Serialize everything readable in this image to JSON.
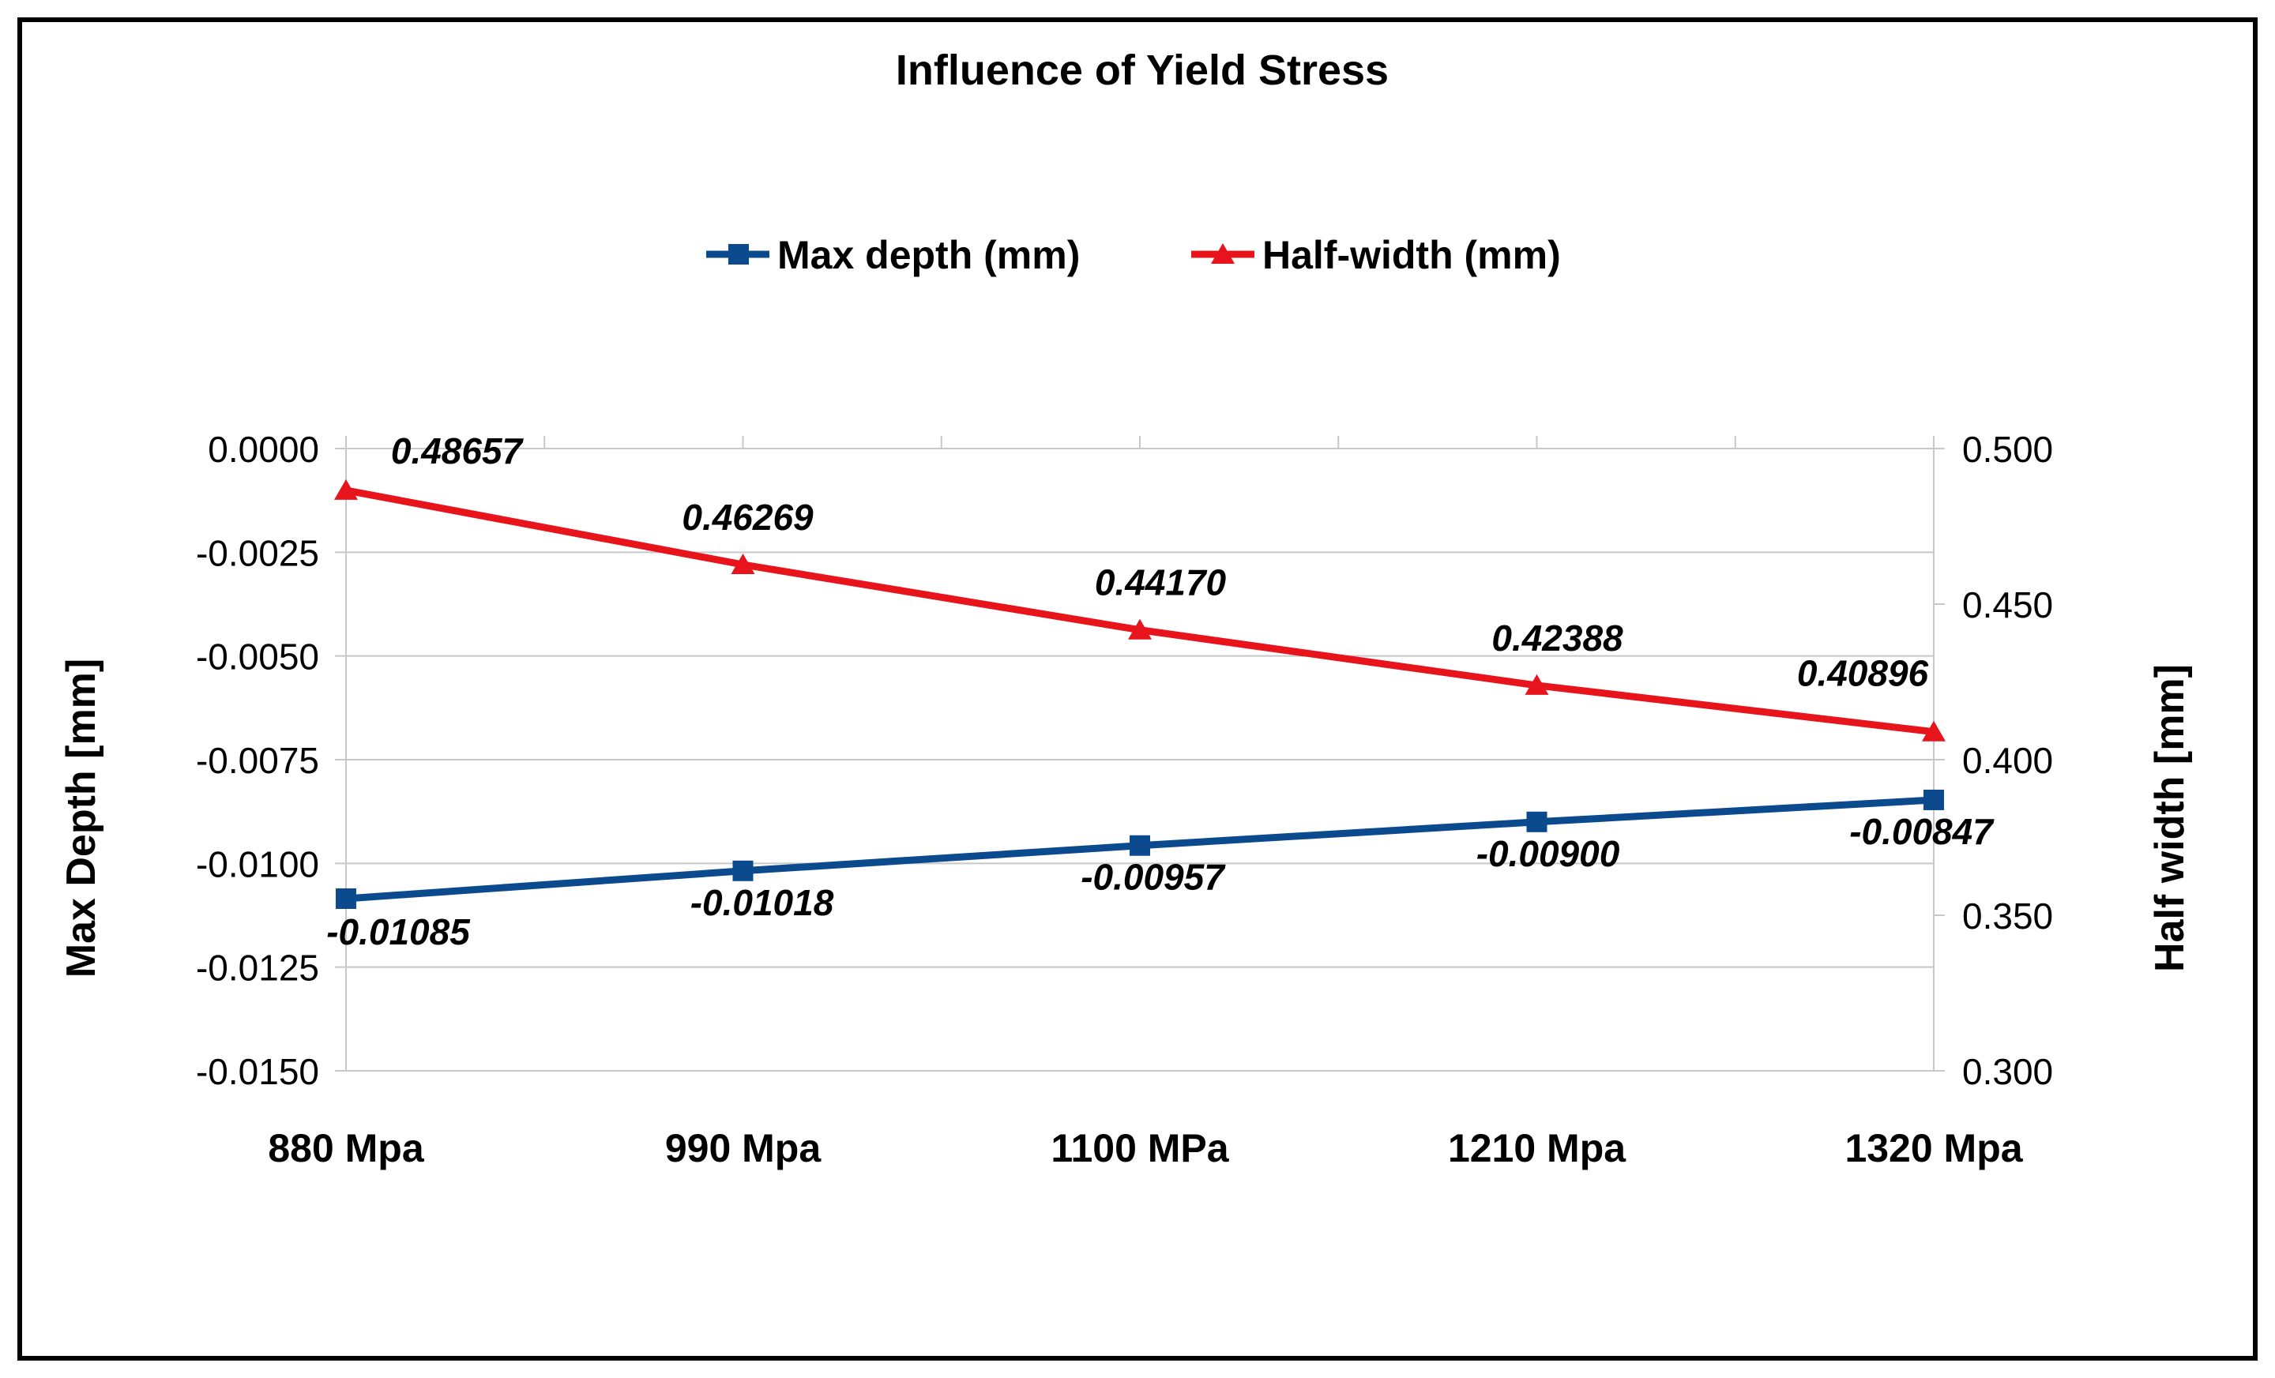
{
  "chart_data": {
    "type": "line",
    "title": "Influence of Yield Stress",
    "categories": [
      "880 Mpa",
      "990 Mpa",
      "1100 MPa",
      "1210 Mpa",
      "1320 Mpa"
    ],
    "series": [
      {
        "name": "Max depth (mm)",
        "axis": "left",
        "color": "#0B4A8C",
        "marker": "square",
        "values": [
          -0.01085,
          -0.01018,
          -0.00957,
          -0.009,
          -0.00847
        ],
        "labels": [
          "-0.01085",
          "-0.01018",
          "-0.00957",
          "-0.00900",
          "-0.00847"
        ]
      },
      {
        "name": "Half-width (mm)",
        "axis": "right",
        "color": "#E8141B",
        "marker": "triangle",
        "values": [
          0.48657,
          0.46269,
          0.4417,
          0.42388,
          0.40896
        ],
        "labels": [
          "0.48657",
          "0.46269",
          "0.44170",
          "0.42388",
          "0.40896"
        ]
      }
    ],
    "y_left": {
      "label": "Max Depth [mm]",
      "min": -0.015,
      "max": 0.0,
      "ticks": [
        0.0,
        -0.0025,
        -0.005,
        -0.0075,
        -0.01,
        -0.0125,
        -0.015
      ],
      "tick_labels": [
        "0.0000",
        "-0.0025",
        "-0.0050",
        "-0.0075",
        "-0.0100",
        "-0.0125",
        "-0.0150"
      ]
    },
    "y_right": {
      "label": "Half width [mm]",
      "min": 0.3,
      "max": 0.5,
      "ticks": [
        0.5,
        0.45,
        0.4,
        0.35,
        0.3
      ],
      "tick_labels": [
        "0.500",
        "0.450",
        "0.400",
        "0.350",
        "0.300"
      ]
    },
    "grid": true,
    "legend_position": "top"
  }
}
